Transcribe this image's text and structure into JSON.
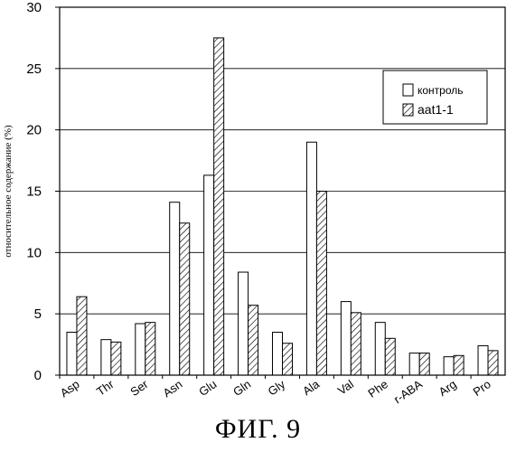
{
  "caption": "ФИГ. 9",
  "chart_data": {
    "type": "bar",
    "ylabel": "относительное содержание (%)",
    "ylim": [
      0,
      30
    ],
    "yticks": [
      0,
      5,
      10,
      15,
      20,
      25,
      30
    ],
    "grid": true,
    "legend_position": "top-right",
    "categories": [
      "Asp",
      "Thr",
      "Ser",
      "Asn",
      "Glu",
      "Gln",
      "Gly",
      "Ala",
      "Val",
      "Phe",
      "r-ABA",
      "Arg",
      "Pro"
    ],
    "series": [
      {
        "name": "контроль",
        "pattern": "open",
        "values": [
          3.5,
          2.9,
          4.2,
          14.1,
          16.3,
          8.4,
          3.5,
          19.0,
          6.0,
          4.3,
          1.8,
          1.5,
          2.4
        ]
      },
      {
        "name": "aat1-1",
        "pattern": "hatched",
        "values": [
          6.4,
          2.7,
          4.3,
          12.4,
          27.5,
          5.7,
          2.6,
          15.0,
          5.1,
          3.0,
          1.8,
          1.6,
          2.0
        ]
      }
    ]
  }
}
